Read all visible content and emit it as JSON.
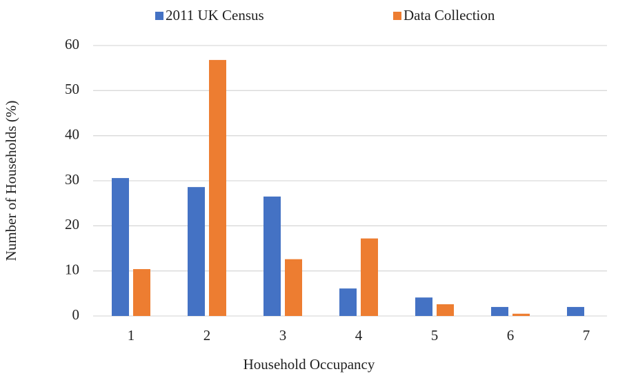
{
  "chart_data": {
    "type": "bar",
    "x_label": "Household Occupancy",
    "y_label": "Number of Households (%)",
    "categories": [
      "1",
      "2",
      "3",
      "4",
      "5",
      "6",
      "7"
    ],
    "series": [
      {
        "name": "2011 UK Census",
        "color": "#4472c4",
        "values": [
          30.6,
          28.6,
          26.5,
          6.1,
          4.1,
          2.0,
          2.0
        ]
      },
      {
        "name": "Data Collection",
        "color": "#ed7d31",
        "values": [
          10.4,
          56.8,
          12.6,
          17.2,
          2.6,
          0.5,
          0
        ]
      }
    ],
    "ylim": [
      0,
      60
    ],
    "yticks": [
      0,
      10,
      20,
      30,
      40,
      50,
      60
    ],
    "grid": true,
    "legend": "top"
  }
}
